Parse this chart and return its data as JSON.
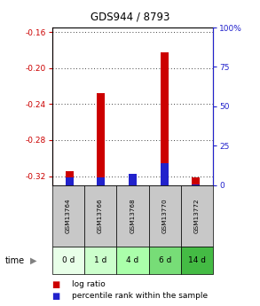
{
  "title": "GDS944 / 8793",
  "samples": [
    "GSM13764",
    "GSM13766",
    "GSM13768",
    "GSM13770",
    "GSM13772"
  ],
  "time_labels": [
    "0 d",
    "1 d",
    "4 d",
    "6 d",
    "14 d"
  ],
  "log_ratios": [
    -0.315,
    -0.228,
    -0.32,
    -0.183,
    -0.321
  ],
  "percentile_ranks": [
    5,
    5,
    7,
    14,
    0.5
  ],
  "ylim_left": [
    -0.33,
    -0.155
  ],
  "ylim_right": [
    0,
    100
  ],
  "left_ticks": [
    -0.32,
    -0.28,
    -0.24,
    -0.2,
    -0.16
  ],
  "right_ticks": [
    0,
    25,
    50,
    75,
    100
  ],
  "bar_color_red": "#cc0000",
  "bar_color_blue": "#2222cc",
  "sample_bg_color": "#c8c8c8",
  "time_bg_colors": [
    "#e8ffe8",
    "#ccffcc",
    "#aaffaa",
    "#77dd77",
    "#44bb44"
  ],
  "left_axis_color": "#cc0000",
  "right_axis_color": "#2222cc",
  "bar_width": 0.25
}
